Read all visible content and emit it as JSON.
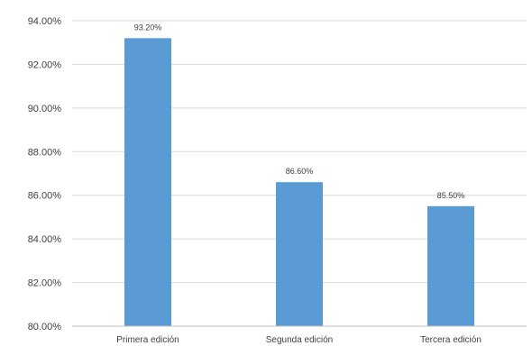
{
  "chart_data": {
    "type": "bar",
    "categories": [
      "Primera edición",
      "Segunda edición",
      "Tercera edición"
    ],
    "values": [
      93.2,
      86.6,
      85.5
    ],
    "data_labels": [
      "93.20%",
      "86.60%",
      "85.50%"
    ],
    "ylim": [
      80,
      94
    ],
    "y_ticks": [
      80,
      82,
      84,
      86,
      88,
      90,
      92,
      94
    ],
    "y_tick_labels": [
      "80.00%",
      "82.00%",
      "84.00%",
      "86.00%",
      "88.00%",
      "90.00%",
      "92.00%",
      "94.00%"
    ],
    "grid": true,
    "legend": "none",
    "bar_color": "#5b9bd5",
    "grid_color": "#d9d9d9"
  }
}
